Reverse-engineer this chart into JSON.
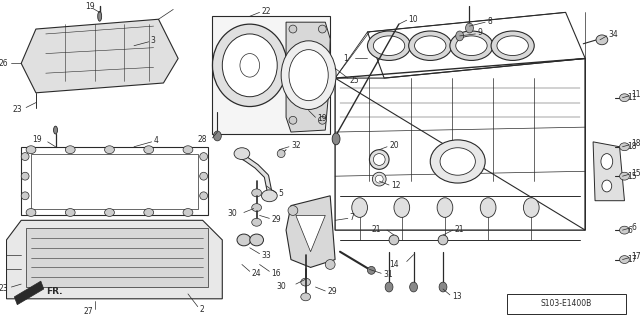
{
  "bg_color": "#ffffff",
  "line_color": "#2a2a2a",
  "ref_code": "S103-E1400B",
  "fig_width": 6.4,
  "fig_height": 3.19,
  "dpi": 100
}
